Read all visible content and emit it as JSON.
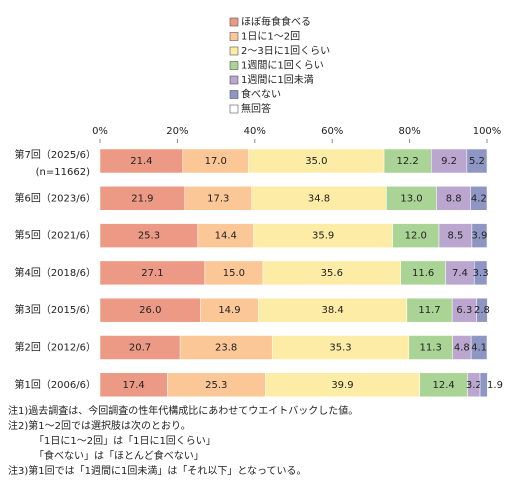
{
  "chart_data": {
    "type": "stacked-bar-horizontal",
    "categories": [
      "第7回（2025/6）",
      "第6回（2023/6）",
      "第5回（2021/6）",
      "第4回（2018/6）",
      "第3回（2015/6）",
      "第2回（2012/6）",
      "第1回（2006/6）"
    ],
    "category_note": "(n=11662)",
    "xlim": [
      0,
      100
    ],
    "xticks": [
      {
        "value": 0,
        "label": "0%"
      },
      {
        "value": 20,
        "label": "20%"
      },
      {
        "value": 40,
        "label": "40%"
      },
      {
        "value": 60,
        "label": "60%"
      },
      {
        "value": 80,
        "label": "80%"
      },
      {
        "value": 100,
        "label": "100%"
      }
    ],
    "grid": false,
    "series": [
      {
        "name": "ほぼ毎食食べる",
        "color": "#ec9a85",
        "values": [
          21.4,
          21.9,
          25.3,
          27.1,
          26.0,
          20.7,
          17.4
        ],
        "value_labels": [
          "21.4",
          "21.9",
          "25.3",
          "27.1",
          "26.0",
          "20.7",
          "17.4"
        ]
      },
      {
        "name": "1日に1～2回",
        "color": "#fbc796",
        "values": [
          17.0,
          17.3,
          14.4,
          15.0,
          14.9,
          23.8,
          25.3
        ],
        "value_labels": [
          "17.0",
          "17.3",
          "14.4",
          "15.0",
          "14.9",
          "23.8",
          "25.3"
        ]
      },
      {
        "name": "2～3日に1回くらい",
        "color": "#fdeca6",
        "values": [
          35.0,
          34.8,
          35.9,
          35.6,
          38.4,
          35.3,
          39.9
        ],
        "value_labels": [
          "35.0",
          "34.8",
          "35.9",
          "35.6",
          "38.4",
          "35.3",
          "39.9"
        ]
      },
      {
        "name": "1週間に1回くらい",
        "color": "#aad495",
        "values": [
          12.2,
          13.0,
          12.0,
          11.6,
          11.7,
          11.3,
          12.4
        ],
        "value_labels": [
          "12.2",
          "13.0",
          "12.0",
          "11.6",
          "11.7",
          "11.3",
          "12.4"
        ]
      },
      {
        "name": "1週間に1回未満",
        "color": "#bba6cf",
        "values": [
          9.2,
          8.8,
          8.5,
          7.4,
          6.3,
          4.8,
          3.2
        ],
        "value_labels": [
          "9.2",
          "8.8",
          "8.5",
          "7.4",
          "6.3",
          "4.8",
          "3.2"
        ]
      },
      {
        "name": "食べない",
        "color": "#8e97c4",
        "values": [
          5.2,
          4.2,
          3.9,
          3.3,
          2.8,
          4.1,
          1.9
        ],
        "value_labels": [
          "5.2",
          "4.2",
          "3.9",
          "3.3",
          "2.8",
          "4.1",
          "1.9"
        ]
      },
      {
        "name": "無回答",
        "color": "#ffffff",
        "values": [
          null,
          null,
          null,
          null,
          null,
          null,
          null
        ]
      }
    ],
    "notes": [
      "注1)過去調査は、今回調査の性年代構成比にあわせてウエイトバックした値。",
      "注2)第1～2回では選択肢は次のとおり。",
      "「1日に1～2回」は「1日に1回くらい」",
      "「食べない」は「ほとんど食べない」",
      "注3)第1回では「1週間に1回未満」は「それ以下」となっている。"
    ]
  }
}
